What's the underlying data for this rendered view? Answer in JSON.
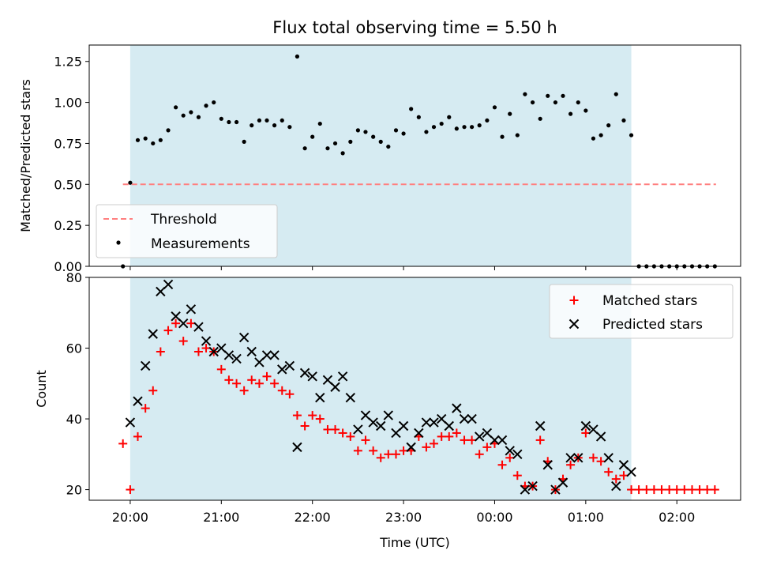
{
  "chart_data": [
    {
      "type": "scatter",
      "title": "Flux total observing time = 5.50 h",
      "xlabel": "",
      "ylabel": "Matched/Predicted stars",
      "ylim": [
        0,
        1.35
      ],
      "yticks": [
        "0.00",
        "0.25",
        "0.50",
        "0.75",
        "1.00",
        "1.25"
      ],
      "xlim_hours": [
        19.55,
        26.7
      ],
      "shaded_span_hours": [
        20.0,
        25.5
      ],
      "shade_color": "#add8e6",
      "threshold": {
        "name": "Threshold",
        "value": 0.5,
        "x_range_hours": [
          19.92,
          26.43
        ],
        "color": "#ff7f7f"
      },
      "series": [
        {
          "name": "Measurements",
          "color": "#000000",
          "x_hours": [
            19.92,
            20.0,
            20.083,
            20.167,
            20.25,
            20.333,
            20.417,
            20.5,
            20.583,
            20.667,
            20.75,
            20.833,
            20.917,
            21.0,
            21.083,
            21.167,
            21.25,
            21.333,
            21.417,
            21.5,
            21.583,
            21.667,
            21.75,
            21.833,
            21.917,
            22.0,
            22.083,
            22.167,
            22.25,
            22.333,
            22.417,
            22.5,
            22.583,
            22.667,
            22.75,
            22.833,
            22.917,
            23.0,
            23.083,
            23.167,
            23.25,
            23.333,
            23.417,
            23.5,
            23.583,
            23.667,
            23.75,
            23.833,
            23.917,
            24.0,
            24.083,
            24.167,
            24.25,
            24.333,
            24.417,
            24.5,
            24.583,
            24.667,
            24.75,
            24.833,
            24.917,
            25.0,
            25.083,
            25.167,
            25.25,
            25.333,
            25.417,
            25.5,
            25.583,
            25.667,
            25.75,
            25.833,
            25.917,
            26.0,
            26.083,
            26.167,
            26.25,
            26.333,
            26.417
          ],
          "y": [
            0.0,
            0.51,
            0.77,
            0.78,
            0.75,
            0.77,
            0.83,
            0.97,
            0.92,
            0.94,
            0.91,
            0.98,
            1.0,
            0.9,
            0.88,
            0.88,
            0.76,
            0.86,
            0.89,
            0.89,
            0.86,
            0.89,
            0.85,
            1.28,
            0.72,
            0.79,
            0.87,
            0.72,
            0.75,
            0.69,
            0.76,
            0.83,
            0.82,
            0.79,
            0.76,
            0.73,
            0.83,
            0.81,
            0.96,
            0.91,
            0.82,
            0.85,
            0.87,
            0.91,
            0.84,
            0.85,
            0.85,
            0.86,
            0.89,
            0.97,
            0.79,
            0.93,
            0.8,
            1.05,
            1.0,
            0.9,
            1.04,
            1.0,
            1.04,
            0.93,
            1.0,
            0.95,
            0.78,
            0.8,
            0.86,
            1.05,
            0.89,
            0.8,
            0.0,
            0.0,
            0.0,
            0.0,
            0.0,
            0.0,
            0.0,
            0.0,
            0.0,
            0.0,
            0.0
          ]
        }
      ],
      "legend": {
        "placement": "lower-left",
        "entries": [
          "Threshold",
          "Measurements"
        ]
      }
    },
    {
      "type": "scatter",
      "xlabel": "Time (UTC)",
      "ylabel": "Count",
      "ylim": [
        17,
        80
      ],
      "yticks": [
        "20",
        "40",
        "60",
        "80"
      ],
      "xticks": [
        "20:00",
        "21:00",
        "22:00",
        "23:00",
        "00:00",
        "01:00",
        "02:00"
      ],
      "xtick_hours": [
        20,
        21,
        22,
        23,
        24,
        25,
        26
      ],
      "xlim_hours": [
        19.55,
        26.7
      ],
      "shaded_span_hours": [
        20.0,
        25.5
      ],
      "shade_color": "#add8e6",
      "series": [
        {
          "name": "Matched stars",
          "marker": "plus",
          "color": "#ff0000",
          "x_hours": [
            19.92,
            20.0,
            20.083,
            20.167,
            20.25,
            20.333,
            20.417,
            20.5,
            20.583,
            20.667,
            20.75,
            20.833,
            20.917,
            21.0,
            21.083,
            21.167,
            21.25,
            21.333,
            21.417,
            21.5,
            21.583,
            21.667,
            21.75,
            21.833,
            21.917,
            22.0,
            22.083,
            22.167,
            22.25,
            22.333,
            22.417,
            22.5,
            22.583,
            22.667,
            22.75,
            22.833,
            22.917,
            23.0,
            23.083,
            23.167,
            23.25,
            23.333,
            23.417,
            23.5,
            23.583,
            23.667,
            23.75,
            23.833,
            23.917,
            24.0,
            24.083,
            24.167,
            24.25,
            24.333,
            24.417,
            24.5,
            24.583,
            24.667,
            24.75,
            24.833,
            24.917,
            25.0,
            25.083,
            25.167,
            25.25,
            25.333,
            25.417,
            25.5,
            25.583,
            25.667,
            25.75,
            25.833,
            25.917,
            26.0,
            26.083,
            26.167,
            26.25,
            26.333,
            26.417
          ],
          "y": [
            33,
            20,
            35,
            43,
            48,
            59,
            65,
            67,
            62,
            67,
            59,
            60,
            59,
            54,
            51,
            50,
            48,
            51,
            50,
            52,
            50,
            48,
            47,
            41,
            38,
            41,
            40,
            37,
            37,
            36,
            35,
            31,
            34,
            31,
            29,
            30,
            30,
            31,
            31,
            35,
            32,
            33,
            35,
            35,
            36,
            34,
            34,
            30,
            32,
            33,
            27,
            29,
            24,
            21,
            21,
            34,
            28,
            20,
            23,
            27,
            29,
            36,
            29,
            28,
            25,
            23,
            24,
            20,
            20,
            20,
            20,
            20,
            20,
            20,
            20,
            20,
            20,
            20,
            20
          ]
        },
        {
          "name": "Predicted stars",
          "marker": "x",
          "color": "#000000",
          "x_hours": [
            20.0,
            20.083,
            20.167,
            20.25,
            20.333,
            20.417,
            20.5,
            20.583,
            20.667,
            20.75,
            20.833,
            20.917,
            21.0,
            21.083,
            21.167,
            21.25,
            21.333,
            21.417,
            21.5,
            21.583,
            21.667,
            21.75,
            21.833,
            21.917,
            22.0,
            22.083,
            22.167,
            22.25,
            22.333,
            22.417,
            22.5,
            22.583,
            22.667,
            22.75,
            22.833,
            22.917,
            23.0,
            23.083,
            23.167,
            23.25,
            23.333,
            23.417,
            23.5,
            23.583,
            23.667,
            23.75,
            23.833,
            23.917,
            24.0,
            24.083,
            24.167,
            24.25,
            24.333,
            24.417,
            24.5,
            24.583,
            24.667,
            24.75,
            24.833,
            24.917,
            25.0,
            25.083,
            25.167,
            25.25,
            25.333,
            25.417,
            25.5
          ],
          "y": [
            39,
            45,
            55,
            64,
            76,
            78,
            69,
            67,
            71,
            66,
            62,
            59,
            60,
            58,
            57,
            63,
            59,
            56,
            58,
            58,
            54,
            55,
            32,
            53,
            52,
            46,
            51,
            49,
            52,
            46,
            37,
            41,
            39,
            38,
            41,
            36,
            38,
            32,
            36,
            39,
            39,
            40,
            38,
            43,
            40,
            40,
            35,
            36,
            34,
            34,
            31,
            30,
            20,
            21,
            38,
            27,
            20,
            22,
            29,
            29,
            38,
            37,
            35,
            29,
            21,
            27,
            25
          ]
        }
      ],
      "legend": {
        "placement": "upper-right",
        "entries": [
          "Matched stars",
          "Predicted stars"
        ]
      }
    }
  ]
}
